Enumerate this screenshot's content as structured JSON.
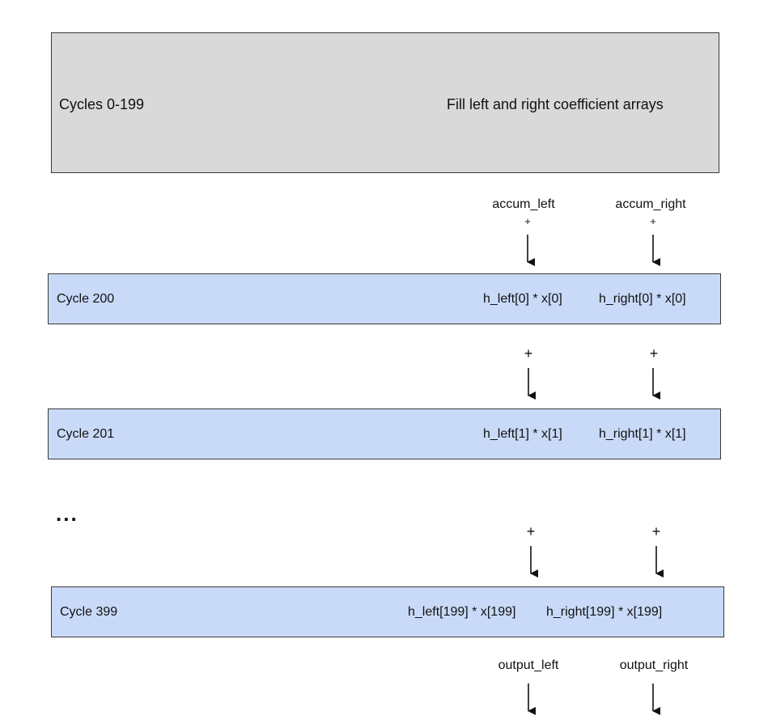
{
  "header_block": {
    "label": "Cycles 0-199",
    "description": "Fill left and right coefficient arrays"
  },
  "inputs": {
    "left": "accum_left",
    "right": "accum_right",
    "op": "+"
  },
  "cycles": [
    {
      "label": "Cycle 200",
      "left_expr": "h_left[0] * x[0]",
      "right_expr": "h_right[0] * x[0]"
    },
    {
      "label": "Cycle 201",
      "left_expr": "h_left[1] * x[1]",
      "right_expr": "h_right[1] * x[1]"
    },
    {
      "label": "Cycle 399",
      "left_expr": "h_left[199] * x[199]",
      "right_expr": "h_right[199] * x[199]"
    }
  ],
  "between": {
    "op": "+"
  },
  "ellipsis": "...",
  "outputs": {
    "left": "output_left",
    "right": "output_right"
  },
  "colors": {
    "header_fill": "#d9d9d9",
    "cycle_fill": "#c9daf8",
    "border": "#3a3a3a",
    "arrow": "#111111"
  }
}
